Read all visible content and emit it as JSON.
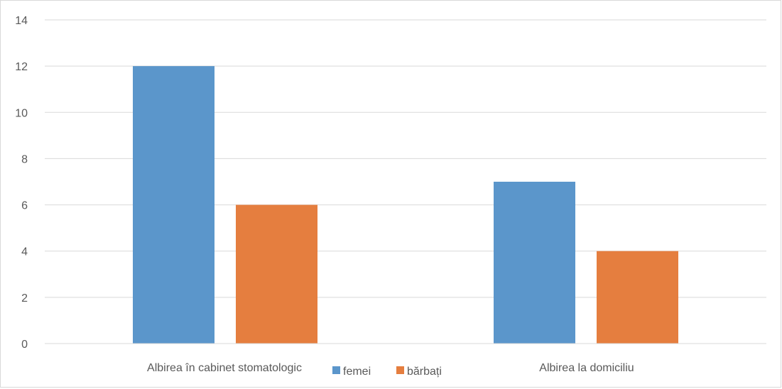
{
  "chart_data": {
    "type": "bar",
    "title": "",
    "xlabel": "",
    "ylabel": "",
    "categories": [
      "Albirea în cabinet stomatologic",
      "Albirea la domiciliu"
    ],
    "series": [
      {
        "name": "femei",
        "values": [
          12,
          7
        ],
        "color": "#5b96cb"
      },
      {
        "name": "bărbați",
        "values": [
          6,
          4
        ],
        "color": "#e57e3f"
      }
    ],
    "ylim": [
      0,
      14
    ],
    "yticks": [
      0,
      2,
      4,
      6,
      8,
      10,
      12,
      14
    ],
    "grid": true,
    "legend_position": "bottom"
  }
}
